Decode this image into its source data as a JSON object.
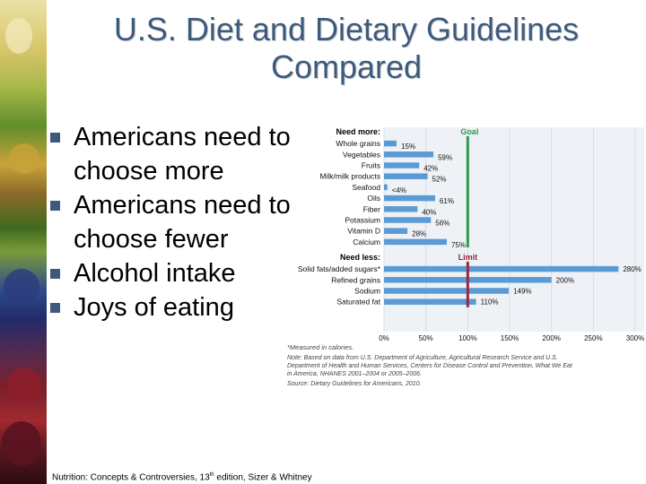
{
  "slide": {
    "title_line1": "U.S. Diet and Dietary Guidelines",
    "title_line2": "Compared",
    "bullets": [
      "Americans need  to choose more",
      "Americans need  to choose fewer",
      "Alcohol intake",
      "Joys of eating"
    ],
    "footer_main": "Nutrition: Concepts & Controversies, 13",
    "footer_sup": "th",
    "footer_rest": " edition, Sizer & Whitney"
  },
  "colors": {
    "title": "#3d5a7a",
    "bar": "#5b9bd5",
    "goal_line": "#2e9a4b",
    "limit_line": "#a0253a",
    "chart_bg": "#eef2f6"
  },
  "chart_data": {
    "type": "bar",
    "orientation": "horizontal",
    "groups": [
      {
        "heading": "Need more:",
        "reference_label": "Goal",
        "categories": [
          "Whole grains",
          "Vegetables",
          "Fruits",
          "Milk/milk products",
          "Seafood",
          "Oils",
          "Fiber",
          "Potassium",
          "Vitamin D",
          "Calcium"
        ],
        "values": [
          15,
          59,
          42,
          52,
          4,
          61,
          40,
          56,
          28,
          75
        ],
        "value_labels": [
          "15%",
          "59%",
          "42%",
          "52%",
          "<4%",
          "61%",
          "40%",
          "56%",
          "28%",
          "75%"
        ]
      },
      {
        "heading": "Need less:",
        "reference_label": "Limit",
        "categories": [
          "Solid fats/added sugars*",
          "Refined grains",
          "Sodium",
          "Saturated fat"
        ],
        "values": [
          280,
          200,
          149,
          110
        ],
        "value_labels": [
          "280%",
          "200%",
          "149%",
          "110%"
        ]
      }
    ],
    "reference_value": 100,
    "x_ticks": [
      "0%",
      "50%",
      "100%",
      "150%",
      "200%",
      "250%",
      "300%"
    ],
    "xlim": [
      0,
      300
    ],
    "footnote": "*Measured in calories.",
    "note": "Note: Based on data from U.S. Department of Agriculture, Agricultural Research Service and U.S. Department of Health and Human Services, Centers for Disease Control and Prevention, What We Eat in America, NHANES 2001–2004 or 2005–2006.",
    "source": "Source: Dietary Guidelines for Americans, 2010."
  }
}
